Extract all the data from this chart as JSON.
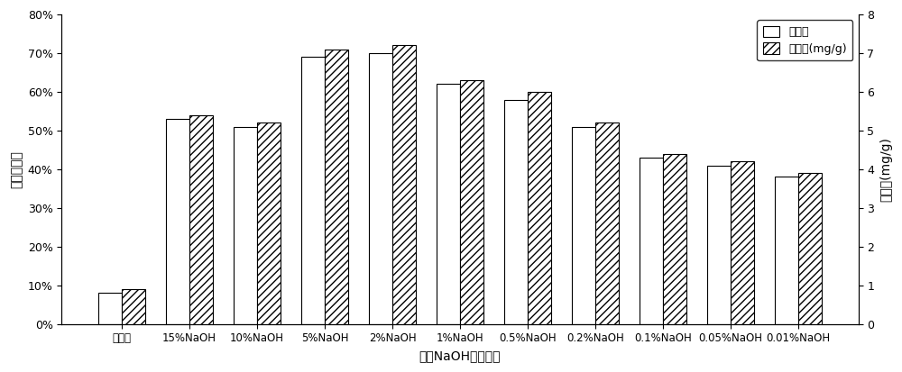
{
  "categories": [
    "铝污泥",
    "15%NaOH",
    "10%NaOH",
    "5%NaOH",
    "2%NaOH",
    "1%NaOH",
    "0.5%NaOH",
    "0.2%NaOH",
    "0.1%NaOH",
    "0.05%NaOH",
    "0.01%NaOH"
  ],
  "removal_rate": [
    0.08,
    0.53,
    0.51,
    0.69,
    0.7,
    0.62,
    0.58,
    0.51,
    0.43,
    0.41,
    0.38
  ],
  "adsorption": [
    0.9,
    5.4,
    5.2,
    7.1,
    7.2,
    6.3,
    6.0,
    5.2,
    4.4,
    4.2,
    3.9
  ],
  "ylim_left": [
    0,
    0.8
  ],
  "ylim_right": [
    0,
    8
  ],
  "yticks_left": [
    0.0,
    0.1,
    0.2,
    0.3,
    0.4,
    0.5,
    0.6,
    0.7,
    0.8
  ],
  "yticks_right": [
    0,
    1,
    2,
    3,
    4,
    5,
    6,
    7,
    8
  ],
  "xlabel": "改性NaOH质量浓度",
  "ylabel_left": "氨氮去除率",
  "ylabel_right": "吸附量(mg/g)",
  "legend_removal": "去除率",
  "legend_adsorption": "吸附量(mg/g)",
  "bar_width": 0.35,
  "hatch_pattern": "////"
}
